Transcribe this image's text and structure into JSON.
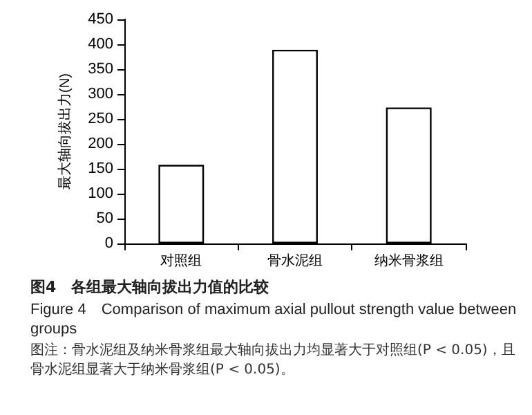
{
  "chart_data": {
    "type": "bar",
    "title": "图4　各组最大轴向拔出力值的比较",
    "subtitle": "Figure 4　Comparison of maximum axial pullout strength value between groups",
    "ylabel": "最大轴向拔出力(N)",
    "categories": [
      "对照组",
      "骨水泥组",
      "纳米骨浆组"
    ],
    "values": [
      158,
      389,
      273
    ],
    "color": "#ffffff",
    "ylim": [
      0,
      450
    ],
    "yticks": [
      0,
      50,
      100,
      150,
      200,
      250,
      300,
      350,
      400,
      450
    ],
    "grid": false,
    "annotations": [
      "图注：骨水泥组及纳米骨浆组最大轴向拔出力均显著大于对照组(P < 0.05)，且骨水泥组显著大于纳米骨浆组(P < 0.05)。"
    ]
  }
}
